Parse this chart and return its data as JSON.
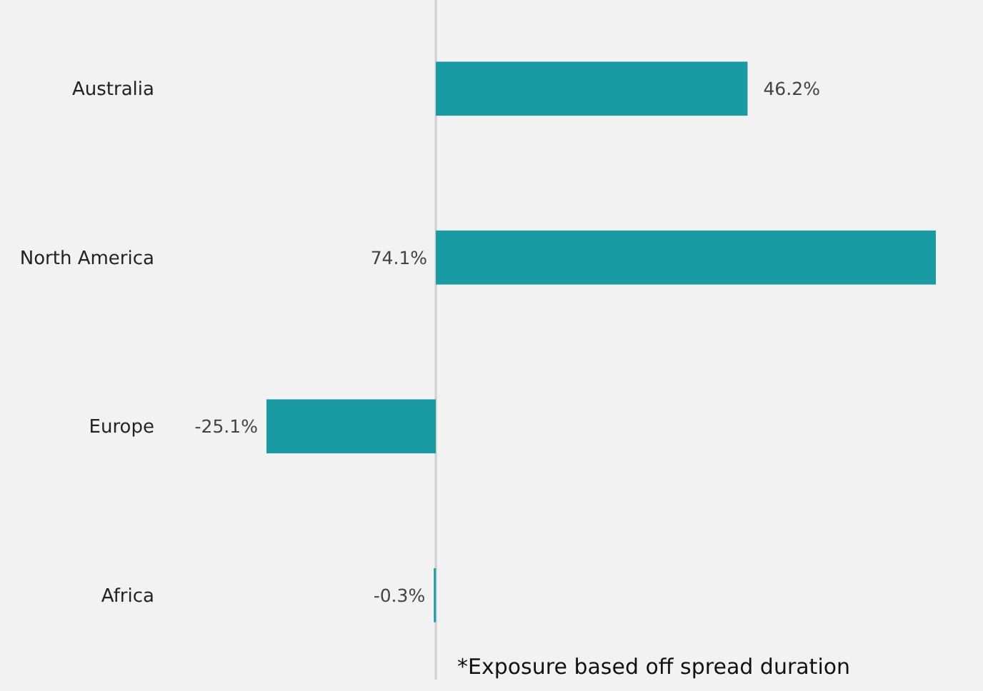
{
  "chart_data": {
    "type": "bar",
    "orientation": "horizontal",
    "categories": [
      "Australia",
      "North America",
      "Europe",
      "Africa"
    ],
    "values": [
      46.2,
      74.1,
      -25.1,
      -0.3
    ],
    "value_labels": [
      "46.2%",
      "74.1%",
      "-25.1%",
      "-0.3%"
    ],
    "color": "#1a9aa2",
    "annotations": [
      "*Exposure based off spread duration"
    ]
  }
}
